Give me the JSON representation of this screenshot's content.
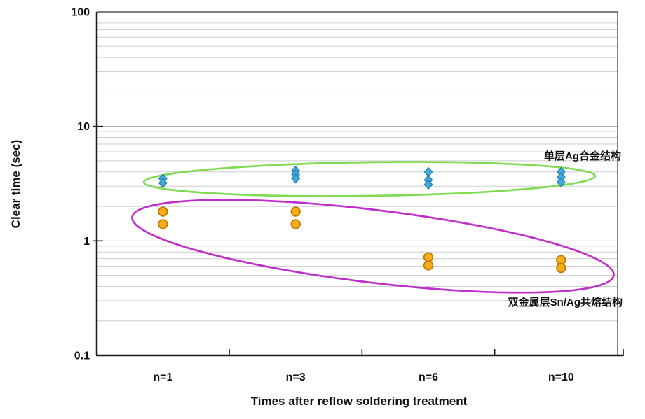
{
  "chart_data": {
    "type": "scatter",
    "title": "",
    "x_axis": {
      "label": "Times after reflow soldering treatment",
      "categories": [
        "n=1",
        "n=3",
        "n=6",
        "n=10"
      ]
    },
    "y_axis": {
      "label": "Clear time (sec)",
      "scale": "log",
      "range": [
        0.1,
        100
      ],
      "ticks": [
        "100",
        "10",
        "1",
        "0.1"
      ]
    },
    "grid": "horizontal-log-minor",
    "series": [
      {
        "name": "单层Ag合金结构",
        "annotation": "单层Ag合金结构",
        "marker": "diamond",
        "marker_fill": "#45a9dc",
        "marker_stroke": "#1f7fae",
        "ellipse_color": "#7edb52",
        "categories": [
          "n=1",
          "n=3",
          "n=6",
          "n=10"
        ],
        "values": [
          [
            3.5,
            3.2
          ],
          [
            4.1,
            3.8,
            3.5
          ],
          [
            4.0,
            3.4,
            3.1
          ],
          [
            4.0,
            3.6,
            3.25
          ]
        ]
      },
      {
        "name": "双金属层Sn/Ag共熔结构",
        "annotation": "双金属层Sn/Ag共熔结构",
        "marker": "circle",
        "marker_fill": "#fbac18",
        "marker_stroke": "#b97a00",
        "ellipse_color": "#bf2fc9",
        "categories": [
          "n=1",
          "n=3",
          "n=6",
          "n=10"
        ],
        "values": [
          [
            1.8,
            1.4
          ],
          [
            1.8,
            1.4
          ],
          [
            0.72,
            0.61
          ],
          [
            0.68,
            0.58
          ]
        ]
      }
    ],
    "colors": {
      "axis": "#1a1a1a",
      "grid_minor": "#cdcdcd",
      "grid_major": "#a8a8a8"
    }
  }
}
